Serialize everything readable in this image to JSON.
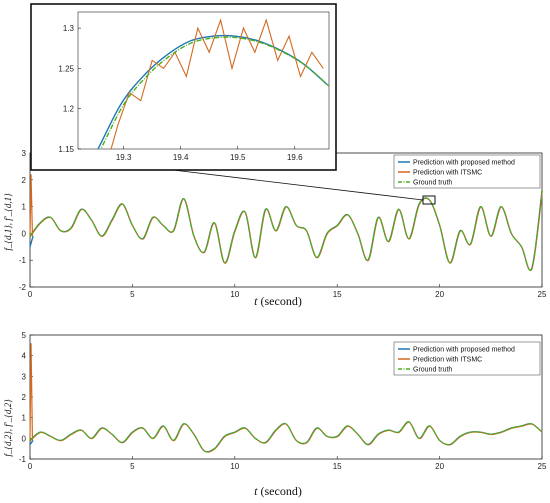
{
  "colors": {
    "proposed": "#1f77b4",
    "itsmc": "#d2691e",
    "truth": "#4caf1e",
    "axes": "#222222"
  },
  "chart_data": [
    {
      "type": "line",
      "panel": "top",
      "xlabel_italic": "t",
      "xlabel_rest": " (second)",
      "ylabel": "f_{d,1}, f'_{d,1}",
      "xlim": [
        0,
        25
      ],
      "ylim": [
        -2,
        3
      ],
      "xticks": [
        "0",
        "5",
        "10",
        "15",
        "20",
        "25"
      ],
      "yticks": [
        "-2",
        "-1",
        "0",
        "1",
        "2",
        "3"
      ],
      "legend_position": "top-right",
      "series": [
        {
          "name": "Prediction with proposed method",
          "style": "solid"
        },
        {
          "name": "Prediction with ITSMC",
          "style": "solid"
        },
        {
          "name": "Ground truth",
          "style": "dash-dot"
        }
      ],
      "x": [
        0,
        0.5,
        1,
        1.5,
        2,
        2.5,
        3,
        3.5,
        4,
        4.5,
        5,
        5.5,
        6,
        6.5,
        7,
        7.5,
        8,
        8.5,
        9,
        9.5,
        10,
        10.5,
        11,
        11.5,
        12,
        12.5,
        13,
        13.5,
        14,
        14.5,
        15,
        15.5,
        16,
        16.5,
        17,
        17.5,
        18,
        18.5,
        19,
        19.5,
        20,
        20.5,
        21,
        21.5,
        22,
        22.5,
        23,
        23.5,
        24,
        24.5,
        25
      ],
      "truth": [
        -0.1,
        0.4,
        0.6,
        0.1,
        0.2,
        0.9,
        0.5,
        -0.1,
        0.5,
        1.1,
        0.3,
        -0.2,
        0.6,
        0.3,
        0.1,
        1.3,
        -0.1,
        -0.7,
        0.4,
        -1.1,
        0.1,
        0.8,
        -0.9,
        0.9,
        0.1,
        1.0,
        0.3,
        0.1,
        -0.9,
        0.0,
        0.3,
        0.7,
        0.0,
        -1.0,
        0.6,
        -0.3,
        0.9,
        -0.2,
        1.1,
        1.25,
        0.3,
        -1.1,
        0.1,
        -0.4,
        1.0,
        -0.1,
        1.0,
        0.0,
        -0.5,
        -1.3,
        1.6
      ],
      "itsmc_start_spike": 2.2,
      "proposed_start_dip": -0.5,
      "inset": {
        "xlim": [
          19.22,
          19.66
        ],
        "ylim": [
          1.15,
          1.32
        ],
        "xticks": [
          "19.3",
          "19.4",
          "19.5",
          "19.6"
        ],
        "yticks": [
          "1.15",
          "1.2",
          "1.25",
          "1.3"
        ],
        "truth_x": [
          19.22,
          19.26,
          19.3,
          19.34,
          19.38,
          19.42,
          19.46,
          19.5,
          19.54,
          19.58,
          19.62,
          19.66
        ],
        "truth_y": [
          1.095,
          1.15,
          1.205,
          1.24,
          1.265,
          1.282,
          1.288,
          1.288,
          1.282,
          1.27,
          1.253,
          1.228
        ],
        "itsmc_x": [
          19.27,
          19.29,
          19.31,
          19.33,
          19.35,
          19.37,
          19.39,
          19.41,
          19.43,
          19.45,
          19.47,
          19.49,
          19.51,
          19.53,
          19.55,
          19.57,
          19.59,
          19.61,
          19.63,
          19.65
        ],
        "itsmc_y": [
          1.13,
          1.18,
          1.22,
          1.21,
          1.26,
          1.25,
          1.27,
          1.24,
          1.3,
          1.27,
          1.31,
          1.25,
          1.3,
          1.27,
          1.31,
          1.26,
          1.29,
          1.24,
          1.27,
          1.25
        ]
      }
    },
    {
      "type": "line",
      "panel": "bottom",
      "xlabel_italic": "t",
      "xlabel_rest": " (second)",
      "ylabel": "f_{d,2}, f'_{d,2}",
      "xlim": [
        0,
        25
      ],
      "ylim": [
        -1,
        5
      ],
      "xticks": [
        "0",
        "5",
        "10",
        "15",
        "20",
        "25"
      ],
      "yticks": [
        "-1",
        "0",
        "1",
        "2",
        "3",
        "4",
        "5"
      ],
      "legend_position": "top-right",
      "series": [
        {
          "name": "Prediction with proposed method",
          "style": "solid"
        },
        {
          "name": "Prediction with ITSMC",
          "style": "solid"
        },
        {
          "name": "Ground truth",
          "style": "dash-dot"
        }
      ],
      "x": [
        0,
        0.5,
        1,
        1.5,
        2,
        2.5,
        3,
        3.5,
        4,
        4.5,
        5,
        5.5,
        6,
        6.5,
        7,
        7.5,
        8,
        8.5,
        9,
        9.5,
        10,
        10.5,
        11,
        11.5,
        12,
        12.5,
        13,
        13.5,
        14,
        14.5,
        15,
        15.5,
        16,
        16.5,
        17,
        17.5,
        18,
        18.5,
        19,
        19.5,
        20,
        20.5,
        21,
        21.5,
        22,
        22.5,
        23,
        23.5,
        24,
        24.5,
        25
      ],
      "truth": [
        -0.1,
        0.3,
        0.1,
        -0.1,
        0.2,
        0.4,
        0.0,
        0.5,
        0.2,
        -0.2,
        0.3,
        0.5,
        0.0,
        0.6,
        -0.1,
        0.7,
        0.2,
        -0.6,
        -0.5,
        0.1,
        0.3,
        0.5,
        0.0,
        -0.2,
        0.4,
        0.7,
        -0.1,
        -0.2,
        0.5,
        0.1,
        0.1,
        0.6,
        0.2,
        -0.3,
        0.2,
        0.4,
        0.3,
        0.8,
        0.0,
        0.6,
        -0.1,
        -0.3,
        0.1,
        0.3,
        0.3,
        0.2,
        0.3,
        0.5,
        0.6,
        0.7,
        0.3
      ],
      "itsmc_start_spike": 4.6,
      "proposed_start_dip": -0.3
    }
  ]
}
